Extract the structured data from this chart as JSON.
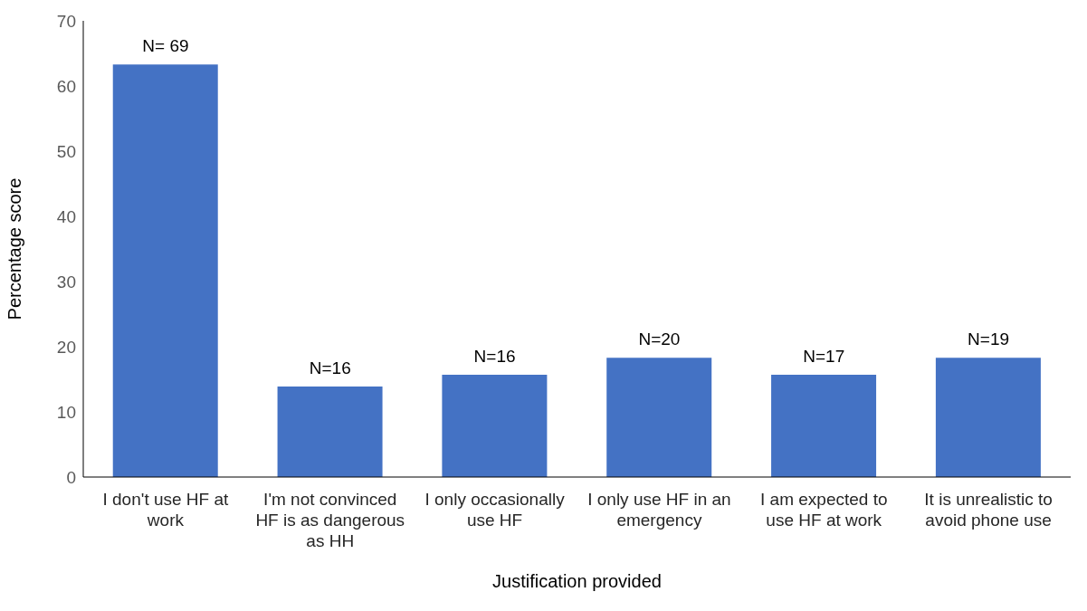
{
  "chart_data": {
    "type": "bar",
    "xlabel": "Justification provided",
    "ylabel": "Percentage score",
    "categories": [
      "I don't use HF at work",
      "I'm not convinced HF is as dangerous as HH",
      "I only occasionally use HF",
      "I only use HF in an emergency",
      "I am expected to use HF at work",
      "It is unrealistic to avoid phone use"
    ],
    "values": [
      63.3,
      13.9,
      15.7,
      18.3,
      15.7,
      18.3
    ],
    "annotations": [
      {
        "text": "N= 69",
        "x": "I don't use HF at work",
        "y": 63.3
      },
      {
        "text": "N=16",
        "x": "I'm not convinced HF is as dangerous as HH",
        "y": 13.9
      },
      {
        "text": "N=16",
        "x": "I only occasionally use HF",
        "y": 15.7
      },
      {
        "text": "N=20",
        "x": "I only use HF in an emergency",
        "y": 18.3
      },
      {
        "text": "N=17",
        "x": "I am expected to use HF at work",
        "y": 15.7
      },
      {
        "text": "N=19",
        "x": "It is unrealistic to avoid phone use",
        "y": 18.3
      }
    ],
    "color": "#4472c4",
    "ylim": [
      0,
      70
    ],
    "yticks": [
      0,
      10,
      20,
      30,
      40,
      50,
      60,
      70
    ],
    "grid": false
  }
}
